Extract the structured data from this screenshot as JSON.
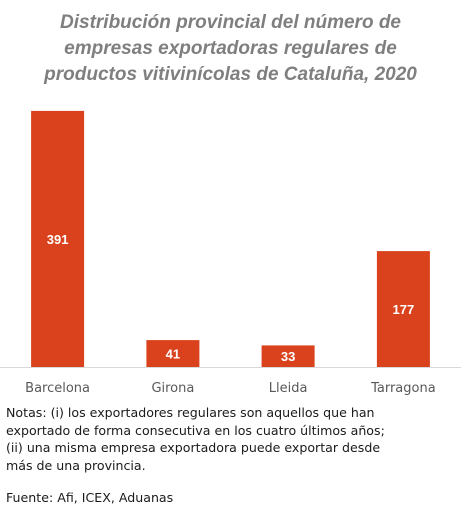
{
  "title_lines": [
    "Distribución provincial del número de",
    "empresas exportadoras regulares de",
    "productos vitivinícolas de Cataluña, 2020"
  ],
  "chart_data": {
    "type": "bar",
    "title": "Distribución provincial del número de empresas exportadoras regulares de productos vitivinícolas de Cataluña, 2020",
    "categories": [
      "Barcelona",
      "Girona",
      "Lleida",
      "Tarragona"
    ],
    "values": [
      391,
      41,
      33,
      177
    ],
    "data_labels": [
      "391",
      "41",
      "33",
      "177"
    ],
    "xlabel": "",
    "ylabel": "",
    "ylim": [
      0,
      400
    ],
    "grid": false,
    "legend": "none",
    "bar_color": "#d9421c",
    "label_color": "#ffffff"
  },
  "notes": {
    "lines": [
      "Notas: (i) los exportadores regulares son aquellos que han",
      "exportado de forma consecutiva en los cuatro últimos años;",
      "(ii) una misma empresa exportadora puede exportar desde",
      "más de una provincia."
    ]
  },
  "source": "Fuente: Afi, ICEX, Aduanas"
}
